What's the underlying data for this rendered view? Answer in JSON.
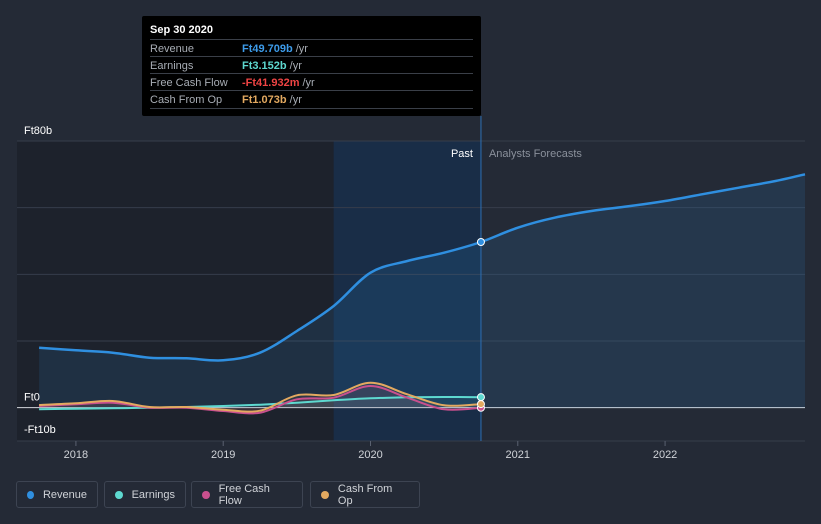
{
  "colors": {
    "revenue": "#2f8fe0",
    "earnings": "#5ed9d0",
    "fcf": "#c9508e",
    "cfo": "#e3a960",
    "background": "#242a36"
  },
  "tooltip": {
    "date": "Sep 30 2020",
    "rows": [
      {
        "label": "Revenue",
        "value": "Ft49.709b",
        "unit": "/yr",
        "color": "#3d9be9"
      },
      {
        "label": "Earnings",
        "value": "Ft3.152b",
        "unit": "/yr",
        "color": "#5ed9d0"
      },
      {
        "label": "Free Cash Flow",
        "value": "-Ft41.932m",
        "unit": "/yr",
        "color": "#ef4444"
      },
      {
        "label": "Cash From Op",
        "value": "Ft1.073b",
        "unit": "/yr",
        "color": "#e3a960"
      }
    ]
  },
  "legend": [
    {
      "label": "Revenue",
      "color": "#2f8fe0"
    },
    {
      "label": "Earnings",
      "color": "#5ed9d0"
    },
    {
      "label": "Free Cash Flow",
      "color": "#c9508e"
    },
    {
      "label": "Cash From Op",
      "color": "#e3a960"
    }
  ],
  "chart_data": {
    "type": "line",
    "xlabel": "",
    "ylabel": "",
    "ylim": [
      -10,
      80
    ],
    "xlim": [
      2017.6,
      2022.95
    ],
    "y_tick_labels": [
      {
        "value": 80,
        "label": "Ft80b"
      },
      {
        "value": 0,
        "label": "Ft0"
      },
      {
        "value": -10,
        "label": "-Ft10b"
      }
    ],
    "x_ticks": [
      2018,
      2019,
      2020,
      2021,
      2022
    ],
    "x_tick_labels": [
      "2018",
      "2019",
      "2020",
      "2021",
      "2022"
    ],
    "gridlines": [
      80,
      60,
      40,
      20,
      0
    ],
    "past_label": "Past",
    "forecast_label": "Analysts Forecasts",
    "highlight_start": 2019.75,
    "divider_x": 2020.75,
    "series": [
      {
        "name": "Revenue",
        "key": "revenue",
        "x": [
          2017.75,
          2018.0,
          2018.25,
          2018.5,
          2018.75,
          2019.0,
          2019.25,
          2019.5,
          2019.75,
          2020.0,
          2020.25,
          2020.5,
          2020.75,
          2021.0,
          2021.25,
          2021.5,
          2021.75,
          2022.0,
          2022.25,
          2022.5,
          2022.75,
          2022.95
        ],
        "values": [
          18,
          17.2,
          16.5,
          15,
          14.8,
          14.2,
          16.5,
          23,
          30.5,
          40.5,
          44,
          46.5,
          49.7,
          54,
          57,
          59,
          60.4,
          62,
          64,
          66,
          68,
          70
        ]
      },
      {
        "name": "Earnings",
        "key": "earnings",
        "x": [
          2017.75,
          2018.0,
          2018.25,
          2018.5,
          2018.75,
          2019.0,
          2019.25,
          2019.5,
          2019.75,
          2020.0,
          2020.25,
          2020.5,
          2020.75
        ],
        "values": [
          -0.5,
          -0.3,
          -0.2,
          0,
          0.2,
          0.5,
          0.9,
          1.5,
          2.2,
          2.8,
          3.1,
          3.2,
          3.15
        ]
      },
      {
        "name": "Free Cash Flow",
        "key": "fcf",
        "x": [
          2017.75,
          2018.0,
          2018.25,
          2018.5,
          2018.75,
          2019.0,
          2019.25,
          2019.5,
          2019.75,
          2020.0,
          2020.25,
          2020.5,
          2020.75
        ],
        "values": [
          0.5,
          1,
          1.5,
          0,
          0,
          -1,
          -1.5,
          2.5,
          3,
          6.5,
          3,
          -0.5,
          -0.04
        ]
      },
      {
        "name": "Cash From Op",
        "key": "cfo",
        "x": [
          2017.75,
          2018.0,
          2018.25,
          2018.5,
          2018.75,
          2019.0,
          2019.25,
          2019.5,
          2019.75,
          2020.0,
          2020.25,
          2020.5,
          2020.75
        ],
        "values": [
          0.8,
          1.3,
          2,
          0.2,
          0.2,
          -0.6,
          -0.9,
          3.7,
          3.8,
          7.5,
          4,
          0.7,
          1.07
        ]
      }
    ]
  }
}
